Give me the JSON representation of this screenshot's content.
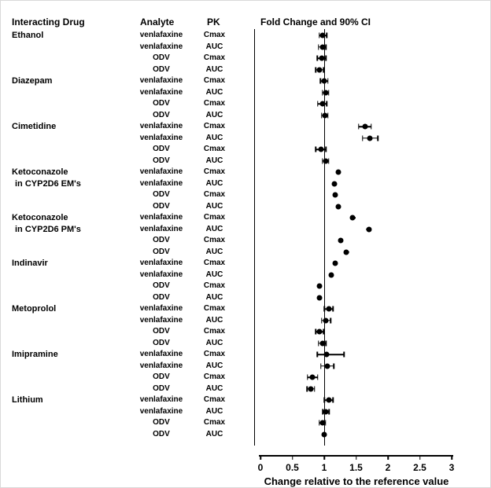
{
  "headers": {
    "interacting_drug": "Interacting Drug",
    "analyte": "Analyte",
    "pk": "PK",
    "fold_change": "Fold Change and 90% CI"
  },
  "chart_data": {
    "type": "forest",
    "title": "Fold Change and 90% CI",
    "xlabel": "Change relative to the reference value",
    "xlim": [
      0,
      3
    ],
    "reference_line": 1,
    "axis_ticks": [
      0,
      0.5,
      1,
      1.5,
      2,
      2.5,
      3
    ],
    "ci_level": "90% CI",
    "groups": [
      {
        "drug": "Ethanol",
        "rows": [
          {
            "analyte": "venlafaxine",
            "pk": "Cmax",
            "est": 0.98,
            "lo": 0.92,
            "hi": 1.04
          },
          {
            "analyte": "venlafaxine",
            "pk": "AUC",
            "est": 0.97,
            "lo": 0.91,
            "hi": 1.03
          },
          {
            "analyte": "ODV",
            "pk": "Cmax",
            "est": 0.96,
            "lo": 0.89,
            "hi": 1.03
          },
          {
            "analyte": "ODV",
            "pk": "AUC",
            "est": 0.93,
            "lo": 0.87,
            "hi": 0.99
          }
        ]
      },
      {
        "drug": "Diazepam",
        "rows": [
          {
            "analyte": "venlafaxine",
            "pk": "Cmax",
            "est": 1.0,
            "lo": 0.94,
            "hi": 1.06
          },
          {
            "analyte": "venlafaxine",
            "pk": "AUC",
            "est": 1.02,
            "lo": 0.97,
            "hi": 1.07
          },
          {
            "analyte": "ODV",
            "pk": "Cmax",
            "est": 0.97,
            "lo": 0.9,
            "hi": 1.04
          },
          {
            "analyte": "ODV",
            "pk": "AUC",
            "est": 1.01,
            "lo": 0.96,
            "hi": 1.06
          }
        ]
      },
      {
        "drug": "Cimetidine",
        "rows": [
          {
            "analyte": "venlafaxine",
            "pk": "Cmax",
            "est": 1.64,
            "lo": 1.54,
            "hi": 1.74
          },
          {
            "analyte": "venlafaxine",
            "pk": "AUC",
            "est": 1.72,
            "lo": 1.6,
            "hi": 1.84
          },
          {
            "analyte": "ODV",
            "pk": "Cmax",
            "est": 0.95,
            "lo": 0.87,
            "hi": 1.03
          },
          {
            "analyte": "ODV",
            "pk": "AUC",
            "est": 1.02,
            "lo": 0.97,
            "hi": 1.07
          }
        ]
      },
      {
        "drug": "Ketoconazole",
        "drug_line2": "in CYP2D6 EM's",
        "rows": [
          {
            "analyte": "venlafaxine",
            "pk": "Cmax",
            "est": 1.22,
            "lo": 1.18,
            "hi": 1.26
          },
          {
            "analyte": "venlafaxine",
            "pk": "AUC",
            "est": 1.16,
            "lo": 1.12,
            "hi": 1.2
          },
          {
            "analyte": "ODV",
            "pk": "Cmax",
            "est": 1.17,
            "lo": 1.13,
            "hi": 1.21
          },
          {
            "analyte": "ODV",
            "pk": "AUC",
            "est": 1.22,
            "lo": 1.18,
            "hi": 1.26
          }
        ]
      },
      {
        "drug": "Ketoconazole",
        "drug_line2": "in CYP2D6 PM's",
        "rows": [
          {
            "analyte": "venlafaxine",
            "pk": "Cmax",
            "est": 1.45,
            "lo": 1.41,
            "hi": 1.49
          },
          {
            "analyte": "venlafaxine",
            "pk": "AUC",
            "est": 1.7,
            "lo": 1.66,
            "hi": 1.74
          },
          {
            "analyte": "ODV",
            "pk": "Cmax",
            "est": 1.26,
            "lo": 1.22,
            "hi": 1.3
          },
          {
            "analyte": "ODV",
            "pk": "AUC",
            "est": 1.35,
            "lo": 1.31,
            "hi": 1.39
          }
        ]
      },
      {
        "drug": "Indinavir",
        "rows": [
          {
            "analyte": "venlafaxine",
            "pk": "Cmax",
            "est": 1.17,
            "lo": 1.13,
            "hi": 1.21
          },
          {
            "analyte": "venlafaxine",
            "pk": "AUC",
            "est": 1.11,
            "lo": 1.07,
            "hi": 1.15
          },
          {
            "analyte": "ODV",
            "pk": "Cmax",
            "est": 0.93,
            "lo": 0.9,
            "hi": 0.96
          },
          {
            "analyte": "ODV",
            "pk": "AUC",
            "est": 0.92,
            "lo": 0.89,
            "hi": 0.95
          }
        ]
      },
      {
        "drug": "Metoprolol",
        "rows": [
          {
            "analyte": "venlafaxine",
            "pk": "Cmax",
            "est": 1.07,
            "lo": 1.0,
            "hi": 1.14
          },
          {
            "analyte": "venlafaxine",
            "pk": "AUC",
            "est": 1.03,
            "lo": 0.96,
            "hi": 1.1
          },
          {
            "analyte": "ODV",
            "pk": "Cmax",
            "est": 0.93,
            "lo": 0.87,
            "hi": 0.99
          },
          {
            "analyte": "ODV",
            "pk": "AUC",
            "est": 0.97,
            "lo": 0.91,
            "hi": 1.03
          }
        ]
      },
      {
        "drug": "Imipramine",
        "rows": [
          {
            "analyte": "venlafaxine",
            "pk": "Cmax",
            "est": 1.04,
            "lo": 0.89,
            "hi": 1.31
          },
          {
            "analyte": "venlafaxine",
            "pk": "AUC",
            "est": 1.05,
            "lo": 0.95,
            "hi": 1.15
          },
          {
            "analyte": "ODV",
            "pk": "Cmax",
            "est": 0.82,
            "lo": 0.74,
            "hi": 0.9
          },
          {
            "analyte": "ODV",
            "pk": "AUC",
            "est": 0.79,
            "lo": 0.73,
            "hi": 0.85
          }
        ]
      },
      {
        "drug": "Lithium",
        "rows": [
          {
            "analyte": "venlafaxine",
            "pk": "Cmax",
            "est": 1.07,
            "lo": 1.0,
            "hi": 1.14
          },
          {
            "analyte": "venlafaxine",
            "pk": "AUC",
            "est": 1.03,
            "lo": 0.98,
            "hi": 1.08
          },
          {
            "analyte": "ODV",
            "pk": "Cmax",
            "est": 0.97,
            "lo": 0.92,
            "hi": 1.02
          },
          {
            "analyte": "ODV",
            "pk": "AUC",
            "est": 1.0,
            "lo": 0.96,
            "hi": 1.04
          }
        ]
      }
    ]
  }
}
